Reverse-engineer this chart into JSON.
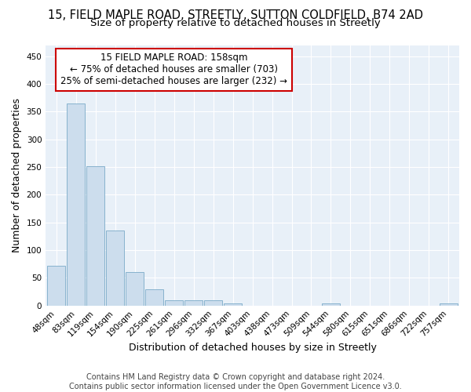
{
  "title_line1": "15, FIELD MAPLE ROAD, STREETLY, SUTTON COLDFIELD, B74 2AD",
  "title_line2": "Size of property relative to detached houses in Streetly",
  "xlabel": "Distribution of detached houses by size in Streetly",
  "ylabel": "Number of detached properties",
  "bar_color": "#ccdded",
  "bar_edge_color": "#7aaac8",
  "categories": [
    "48sqm",
    "83sqm",
    "119sqm",
    "154sqm",
    "190sqm",
    "225sqm",
    "261sqm",
    "296sqm",
    "332sqm",
    "367sqm",
    "403sqm",
    "438sqm",
    "473sqm",
    "509sqm",
    "544sqm",
    "580sqm",
    "615sqm",
    "651sqm",
    "686sqm",
    "722sqm",
    "757sqm"
  ],
  "values": [
    72,
    365,
    252,
    136,
    60,
    29,
    10,
    10,
    10,
    4,
    0,
    0,
    0,
    0,
    4,
    0,
    0,
    0,
    0,
    0,
    4
  ],
  "ylim": [
    0,
    470
  ],
  "yticks": [
    0,
    50,
    100,
    150,
    200,
    250,
    300,
    350,
    400,
    450
  ],
  "annotation_text_line1": "15 FIELD MAPLE ROAD: 158sqm",
  "annotation_text_line2": "← 75% of detached houses are smaller (703)",
  "annotation_text_line3": "25% of semi-detached houses are larger (232) →",
  "annotation_box_facecolor": "#ffffff",
  "annotation_box_edgecolor": "#cc0000",
  "background_color": "#e8f0f8",
  "grid_color": "#ffffff",
  "footer_text": "Contains HM Land Registry data © Crown copyright and database right 2024.\nContains public sector information licensed under the Open Government Licence v3.0.",
  "title_fontsize": 10.5,
  "subtitle_fontsize": 9.5,
  "axis_label_fontsize": 9,
  "tick_fontsize": 7.5,
  "annotation_fontsize": 8.5,
  "footer_fontsize": 7
}
